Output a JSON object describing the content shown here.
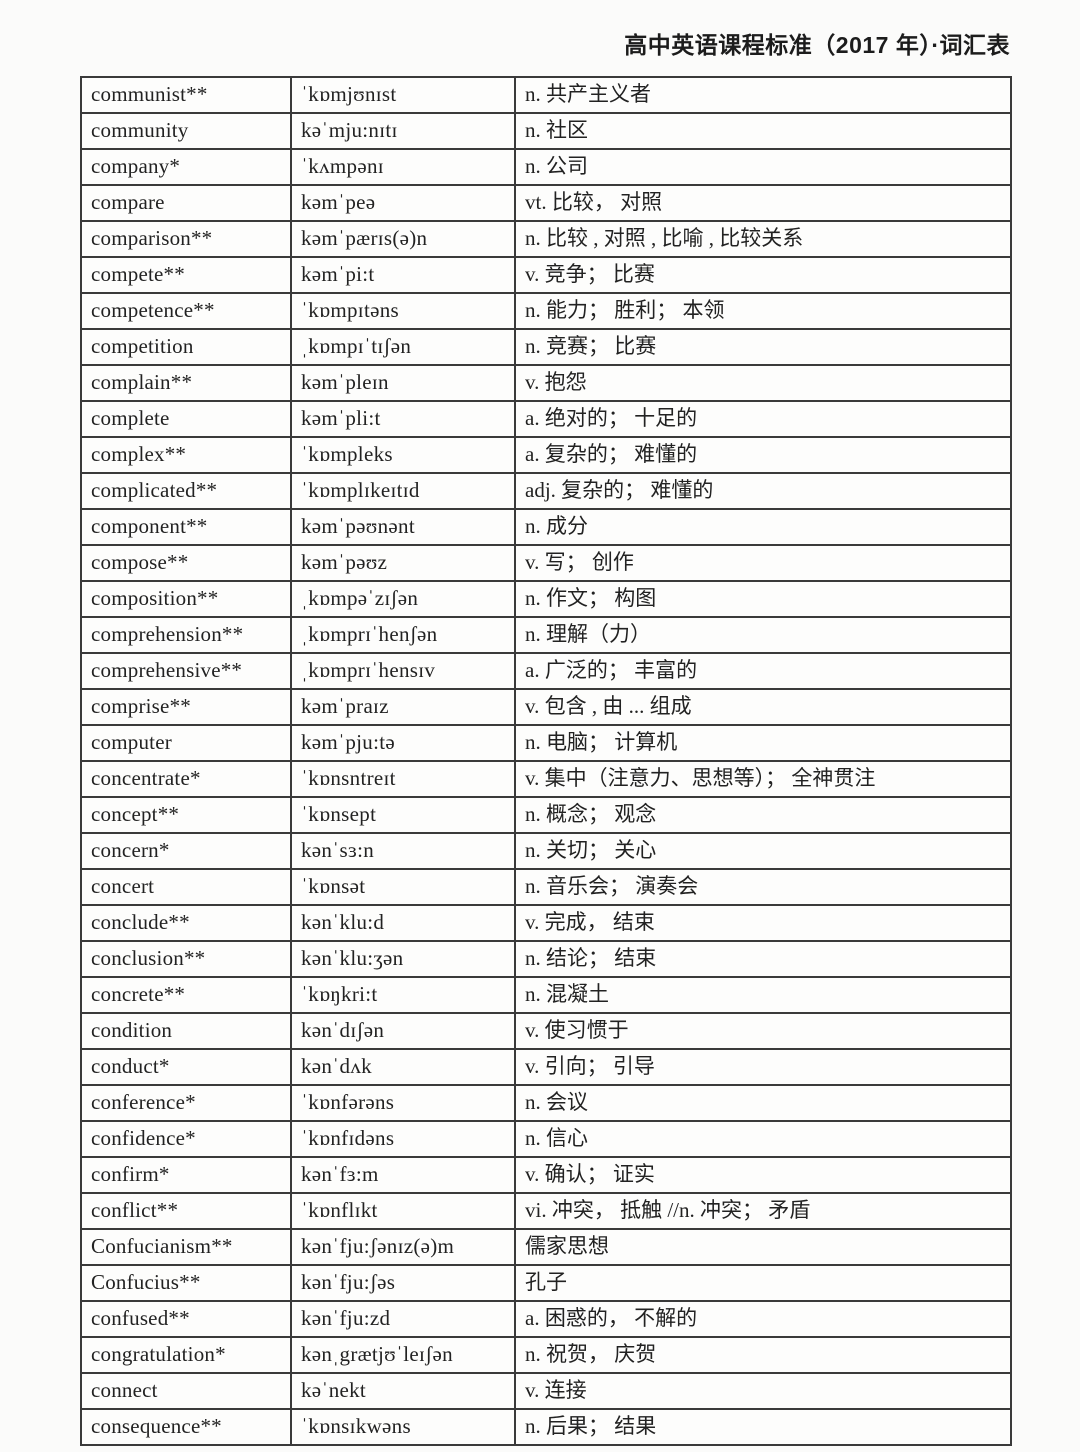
{
  "header": {
    "title": "高中英语课程标准（2017 年）·词汇表"
  },
  "table": {
    "columns": [
      "word",
      "ipa",
      "definition"
    ],
    "rows": [
      {
        "word": "communist**",
        "ipa": "ˈkɒmjʊnɪst",
        "def": "n. 共产主义者"
      },
      {
        "word": "community",
        "ipa": "kəˈmju:nɪtɪ",
        "def": "n. 社区"
      },
      {
        "word": "company*",
        "ipa": "ˈkʌmpənɪ",
        "def": "n. 公司"
      },
      {
        "word": "compare",
        "ipa": "kəmˈpeə",
        "def": "vt. 比较， 对照"
      },
      {
        "word": "comparison**",
        "ipa": "kəmˈpærɪs(ə)n",
        "def": "n. 比较 , 对照 , 比喻 , 比较关系"
      },
      {
        "word": "compete**",
        "ipa": "kəmˈpi:t",
        "def": "v. 竞争； 比赛"
      },
      {
        "word": "competence**",
        "ipa": "ˈkɒmpɪtəns",
        "def": "n. 能力； 胜利； 本领"
      },
      {
        "word": "competition",
        "ipa": "ˌkɒmpɪˈtɪʃən",
        "def": "n. 竞赛； 比赛"
      },
      {
        "word": "complain**",
        "ipa": "kəmˈpleɪn",
        "def": "v. 抱怨"
      },
      {
        "word": "complete",
        "ipa": "kəmˈpli:t",
        "def": "a. 绝对的； 十足的"
      },
      {
        "word": "complex**",
        "ipa": "ˈkɒmpleks",
        "def": "a. 复杂的； 难懂的"
      },
      {
        "word": "complicated**",
        "ipa": "ˈkɒmplɪkeɪtɪd",
        "def": "adj. 复杂的； 难懂的"
      },
      {
        "word": "component**",
        "ipa": "kəmˈpəʊnənt",
        "def": "n. 成分"
      },
      {
        "word": "compose**",
        "ipa": "kəmˈpəʊz",
        "def": "v. 写； 创作"
      },
      {
        "word": "composition**",
        "ipa": "ˌkɒmpəˈzɪʃən",
        "def": "n. 作文； 构图"
      },
      {
        "word": "comprehension**",
        "ipa": "ˌkɒmprɪˈhenʃən",
        "def": "n. 理解（力）"
      },
      {
        "word": "comprehensive**",
        "ipa": "ˌkɒmprɪˈhensɪv",
        "def": "a. 广泛的； 丰富的"
      },
      {
        "word": "comprise**",
        "ipa": "kəmˈpraɪz",
        "def": "v. 包含 , 由 ... 组成"
      },
      {
        "word": "computer",
        "ipa": "kəmˈpju:tə",
        "def": "n. 电脑； 计算机"
      },
      {
        "word": "concentrate*",
        "ipa": "ˈkɒnsntreɪt",
        "def": "v. 集中（注意力、思想等）； 全神贯注"
      },
      {
        "word": "concept**",
        "ipa": "ˈkɒnsept",
        "def": "n. 概念； 观念"
      },
      {
        "word": "concern*",
        "ipa": "kənˈsɜ:n",
        "def": "n. 关切； 关心"
      },
      {
        "word": "concert",
        "ipa": "ˈkɒnsət",
        "def": "n. 音乐会； 演奏会"
      },
      {
        "word": "conclude**",
        "ipa": "kənˈklu:d",
        "def": "v. 完成， 结束"
      },
      {
        "word": "conclusion**",
        "ipa": "kənˈklu:ʒən",
        "def": "n. 结论； 结束"
      },
      {
        "word": "concrete**",
        "ipa": "ˈkɒŋkri:t",
        "def": "n. 混凝土"
      },
      {
        "word": "condition",
        "ipa": "kənˈdɪʃən",
        "def": "v. 使习惯于"
      },
      {
        "word": "conduct*",
        "ipa": "kənˈdʌk",
        "def": "v. 引向； 引导"
      },
      {
        "word": "conference*",
        "ipa": "ˈkɒnfərəns",
        "def": "n. 会议"
      },
      {
        "word": "confidence*",
        "ipa": "ˈkɒnfɪdəns",
        "def": "n. 信心"
      },
      {
        "word": "confirm*",
        "ipa": "kənˈfɜ:m",
        "def": "v. 确认； 证实"
      },
      {
        "word": "conflict**",
        "ipa": "ˈkɒnflɪkt",
        "def": "vi. 冲突， 抵触 //n. 冲突； 矛盾"
      },
      {
        "word": "Confucianism**",
        "ipa": "kənˈfju:ʃənɪz(ə)m",
        "def": "儒家思想"
      },
      {
        "word": "Confucius**",
        "ipa": "kənˈfju:ʃəs",
        "def": "孔子"
      },
      {
        "word": "confused**",
        "ipa": "kənˈfju:zd",
        "def": "a. 困惑的， 不解的"
      },
      {
        "word": "congratulation*",
        "ipa": "kənˌgrætjʊˈleɪʃən",
        "def": "n. 祝贺， 庆贺"
      },
      {
        "word": "connect",
        "ipa": "kəˈnekt",
        "def": "v. 连接"
      },
      {
        "word": "consequence**",
        "ipa": "ˈkɒnsɪkwəns",
        "def": "n. 后果； 结果"
      }
    ]
  }
}
